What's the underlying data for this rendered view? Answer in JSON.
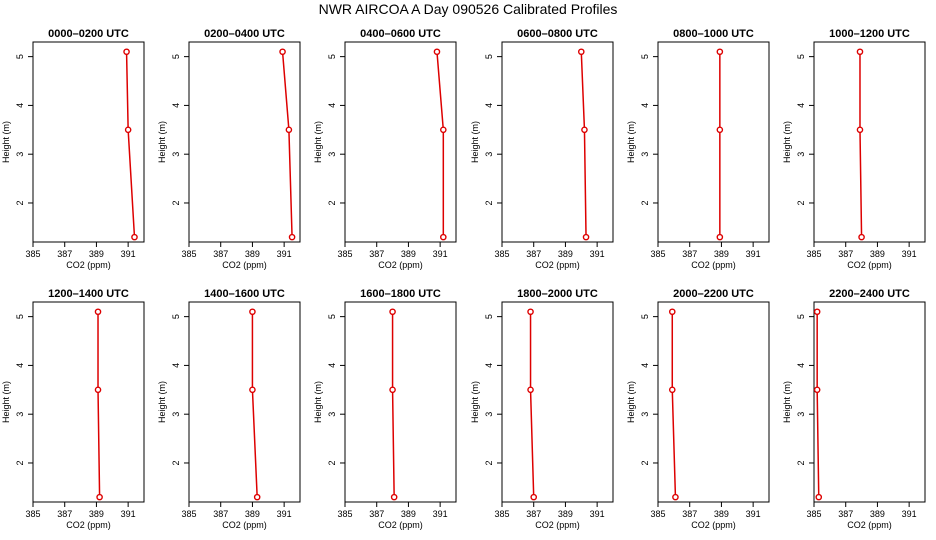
{
  "title": "NWR AIRCOA A  Day 090526  Calibrated Profiles",
  "colors": {
    "series": "#dd0000",
    "axis": "#000000",
    "background": "#ffffff"
  },
  "chart_data": [
    {
      "type": "line",
      "title": "0000–0200 UTC",
      "xlabel": "CO2 (ppm)",
      "ylabel": "Height (m)",
      "xlim": [
        385,
        392
      ],
      "ylim": [
        1.2,
        5.3
      ],
      "xticks": [
        385,
        387,
        389,
        391
      ],
      "yticks": [
        2,
        3,
        4,
        5
      ],
      "grid": false,
      "points": [
        {
          "x": 391.4,
          "y": 1.3
        },
        {
          "x": 391.0,
          "y": 3.5
        },
        {
          "x": 390.9,
          "y": 5.1
        }
      ]
    },
    {
      "type": "line",
      "title": "0200–0400 UTC",
      "xlabel": "CO2 (ppm)",
      "ylabel": "Height (m)",
      "xlim": [
        385,
        392
      ],
      "ylim": [
        1.2,
        5.3
      ],
      "xticks": [
        385,
        387,
        389,
        391
      ],
      "yticks": [
        2,
        3,
        4,
        5
      ],
      "grid": false,
      "points": [
        {
          "x": 391.5,
          "y": 1.3
        },
        {
          "x": 391.3,
          "y": 3.5
        },
        {
          "x": 390.9,
          "y": 5.1
        }
      ]
    },
    {
      "type": "line",
      "title": "0400–0600 UTC",
      "xlabel": "CO2 (ppm)",
      "ylabel": "Height (m)",
      "xlim": [
        385,
        392
      ],
      "ylim": [
        1.2,
        5.3
      ],
      "xticks": [
        385,
        387,
        389,
        391
      ],
      "yticks": [
        2,
        3,
        4,
        5
      ],
      "grid": false,
      "points": [
        {
          "x": 391.2,
          "y": 1.3
        },
        {
          "x": 391.2,
          "y": 3.5
        },
        {
          "x": 390.8,
          "y": 5.1
        }
      ]
    },
    {
      "type": "line",
      "title": "0600–0800 UTC",
      "xlabel": "CO2 (ppm)",
      "ylabel": "Height (m)",
      "xlim": [
        385,
        392
      ],
      "ylim": [
        1.2,
        5.3
      ],
      "xticks": [
        385,
        387,
        389,
        391
      ],
      "yticks": [
        2,
        3,
        4,
        5
      ],
      "grid": false,
      "points": [
        {
          "x": 390.3,
          "y": 1.3
        },
        {
          "x": 390.2,
          "y": 3.5
        },
        {
          "x": 390.0,
          "y": 5.1
        }
      ]
    },
    {
      "type": "line",
      "title": "0800–1000 UTC",
      "xlabel": "CO2 (ppm)",
      "ylabel": "Height (m)",
      "xlim": [
        385,
        392
      ],
      "ylim": [
        1.2,
        5.3
      ],
      "xticks": [
        385,
        387,
        389,
        391
      ],
      "yticks": [
        2,
        3,
        4,
        5
      ],
      "grid": false,
      "points": [
        {
          "x": 388.9,
          "y": 1.3
        },
        {
          "x": 388.9,
          "y": 3.5
        },
        {
          "x": 388.9,
          "y": 5.1
        }
      ]
    },
    {
      "type": "line",
      "title": "1000–1200 UTC",
      "xlabel": "CO2 (ppm)",
      "ylabel": "Height (m)",
      "xlim": [
        385,
        392
      ],
      "ylim": [
        1.2,
        5.3
      ],
      "xticks": [
        385,
        387,
        389,
        391
      ],
      "yticks": [
        2,
        3,
        4,
        5
      ],
      "grid": false,
      "points": [
        {
          "x": 388.0,
          "y": 1.3
        },
        {
          "x": 387.9,
          "y": 3.5
        },
        {
          "x": 387.9,
          "y": 5.1
        }
      ]
    },
    {
      "type": "line",
      "title": "1200–1400 UTC",
      "xlabel": "CO2 (ppm)",
      "ylabel": "Height (m)",
      "xlim": [
        385,
        392
      ],
      "ylim": [
        1.2,
        5.3
      ],
      "xticks": [
        385,
        387,
        389,
        391
      ],
      "yticks": [
        2,
        3,
        4,
        5
      ],
      "grid": false,
      "points": [
        {
          "x": 389.2,
          "y": 1.3
        },
        {
          "x": 389.1,
          "y": 3.5
        },
        {
          "x": 389.1,
          "y": 5.1
        }
      ]
    },
    {
      "type": "line",
      "title": "1400–1600 UTC",
      "xlabel": "CO2 (ppm)",
      "ylabel": "Height (m)",
      "xlim": [
        385,
        392
      ],
      "ylim": [
        1.2,
        5.3
      ],
      "xticks": [
        385,
        387,
        389,
        391
      ],
      "yticks": [
        2,
        3,
        4,
        5
      ],
      "grid": false,
      "points": [
        {
          "x": 389.3,
          "y": 1.3
        },
        {
          "x": 389.0,
          "y": 3.5
        },
        {
          "x": 389.0,
          "y": 5.1
        }
      ]
    },
    {
      "type": "line",
      "title": "1600–1800 UTC",
      "xlabel": "CO2 (ppm)",
      "ylabel": "Height (m)",
      "xlim": [
        385,
        392
      ],
      "ylim": [
        1.2,
        5.3
      ],
      "xticks": [
        385,
        387,
        389,
        391
      ],
      "yticks": [
        2,
        3,
        4,
        5
      ],
      "grid": false,
      "points": [
        {
          "x": 388.1,
          "y": 1.3
        },
        {
          "x": 388.0,
          "y": 3.5
        },
        {
          "x": 388.0,
          "y": 5.1
        }
      ]
    },
    {
      "type": "line",
      "title": "1800–2000 UTC",
      "xlabel": "CO2 (ppm)",
      "ylabel": "Height (m)",
      "xlim": [
        385,
        392
      ],
      "ylim": [
        1.2,
        5.3
      ],
      "xticks": [
        385,
        387,
        389,
        391
      ],
      "yticks": [
        2,
        3,
        4,
        5
      ],
      "grid": false,
      "points": [
        {
          "x": 387.0,
          "y": 1.3
        },
        {
          "x": 386.8,
          "y": 3.5
        },
        {
          "x": 386.8,
          "y": 5.1
        }
      ]
    },
    {
      "type": "line",
      "title": "2000–2200 UTC",
      "xlabel": "CO2 (ppm)",
      "ylabel": "Height (m)",
      "xlim": [
        385,
        392
      ],
      "ylim": [
        1.2,
        5.3
      ],
      "xticks": [
        385,
        387,
        389,
        391
      ],
      "yticks": [
        2,
        3,
        4,
        5
      ],
      "grid": false,
      "points": [
        {
          "x": 386.1,
          "y": 1.3
        },
        {
          "x": 385.9,
          "y": 3.5
        },
        {
          "x": 385.9,
          "y": 5.1
        }
      ]
    },
    {
      "type": "line",
      "title": "2200–2400 UTC",
      "xlabel": "CO2 (ppm)",
      "ylabel": "Height (m)",
      "xlim": [
        385,
        392
      ],
      "ylim": [
        1.2,
        5.3
      ],
      "xticks": [
        385,
        387,
        389,
        391
      ],
      "yticks": [
        2,
        3,
        4,
        5
      ],
      "grid": false,
      "points": [
        {
          "x": 385.3,
          "y": 1.3
        },
        {
          "x": 385.2,
          "y": 3.5
        },
        {
          "x": 385.2,
          "y": 5.1
        }
      ]
    }
  ]
}
